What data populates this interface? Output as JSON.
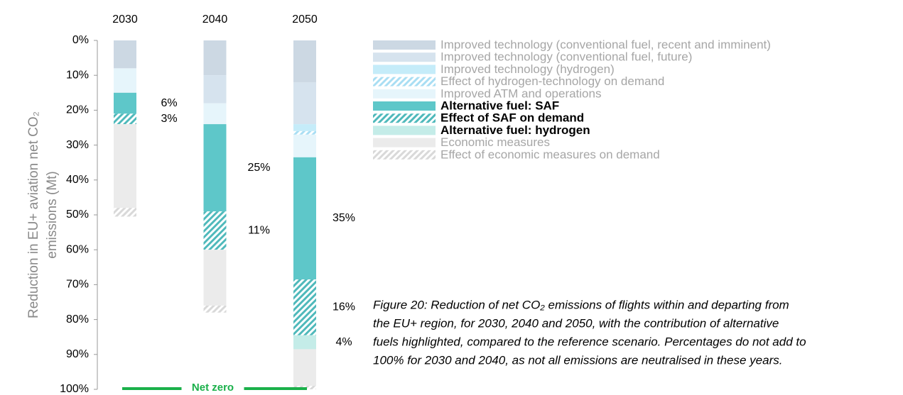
{
  "chart_data": {
    "type": "stacked_bar",
    "orientation": "inverted",
    "categories": [
      "2030",
      "2040",
      "2050"
    ],
    "ylabel": [
      "Reduction in EU+ aviation net CO₂",
      "emissions (Mt)"
    ],
    "ylim": [
      0,
      100
    ],
    "yticks": [
      {
        "value": 0,
        "label": "0%"
      },
      {
        "value": 10,
        "label": "10%"
      },
      {
        "value": 20,
        "label": "20%"
      },
      {
        "value": 30,
        "label": "30%"
      },
      {
        "value": 40,
        "label": "40%"
      },
      {
        "value": 50,
        "label": "50%"
      },
      {
        "value": 60,
        "label": "60%"
      },
      {
        "value": 70,
        "label": "70%"
      },
      {
        "value": 80,
        "label": "80%"
      },
      {
        "value": 90,
        "label": "90%"
      },
      {
        "value": 100,
        "label": "100%"
      }
    ],
    "series": [
      {
        "name": "Improved technology (conventional fuel, recent and imminent)",
        "color": "#ccd8e3",
        "values": [
          8,
          10,
          12
        ]
      },
      {
        "name": "Improved technology (conventional fuel, future)",
        "color": "#d6e3ee",
        "values": [
          0,
          8,
          12
        ]
      },
      {
        "name": "Improved technology (hydrogen)",
        "color": "#c5ecf9",
        "values": [
          0,
          0,
          2
        ]
      },
      {
        "name": "Effect of hydrogen-technology on demand",
        "color": "#a9def3",
        "hatch": true,
        "values": [
          0,
          0,
          1
        ]
      },
      {
        "name": "Improved ATM and operations",
        "color": "#e6f5fb",
        "values": [
          7,
          6,
          6.5
        ]
      },
      {
        "name": "Alternative fuel: SAF",
        "color": "#5ec7c9",
        "bold": true,
        "values": [
          6,
          25,
          35
        ],
        "value_labels": [
          "6%",
          "25%",
          "35%"
        ]
      },
      {
        "name": "Effect of SAF on demand",
        "color": "#4fb9bb",
        "hatch": true,
        "bold": true,
        "values": [
          3,
          11,
          16
        ],
        "value_labels": [
          "3%",
          "11%",
          "16%"
        ]
      },
      {
        "name": "Alternative fuel: hydrogen",
        "color": "#c4ece8",
        "bold": true,
        "values": [
          0,
          0,
          4
        ],
        "value_labels": [
          null,
          null,
          "4%"
        ]
      },
      {
        "name": "Economic measures",
        "color": "#ebebeb",
        "values": [
          24,
          16,
          10.5
        ]
      },
      {
        "name": "Effect of economic measures on demand",
        "color": "#d9d9d9",
        "hatch": true,
        "values": [
          2.5,
          2,
          1
        ]
      }
    ],
    "annotation": "Net zero",
    "annotation_color": "#1ab04a",
    "caption": [
      "Figure 20: Reduction of net CO₂ emissions of flights within and departing from",
      "the EU+ region, for 2030, 2040 and 2050, with the contribution of alternative",
      "fuels highlighted, compared to the reference scenario. Percentages do not add to",
      "100% for 2030 and 2040, as not all emissions are neutralised in these years."
    ]
  }
}
